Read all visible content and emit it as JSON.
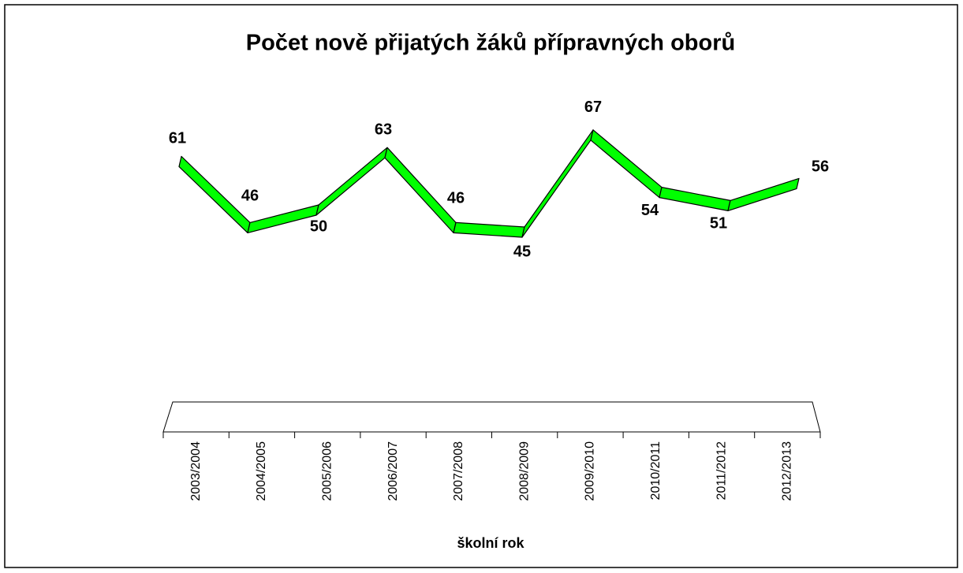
{
  "chart_data": {
    "type": "line3d",
    "title": "Počet nově přijatých žáků přípravných oborů",
    "x_label": "školní rok",
    "categories": [
      "2003/2004",
      "2004/2005",
      "2005/2006",
      "2006/2007",
      "2007/2008",
      "2008/2009",
      "2009/2010",
      "2010/2011",
      "2011/2012",
      "2012/2013"
    ],
    "values": [
      61,
      46,
      50,
      63,
      46,
      45,
      67,
      54,
      51,
      56
    ],
    "color": "#00ff00"
  }
}
